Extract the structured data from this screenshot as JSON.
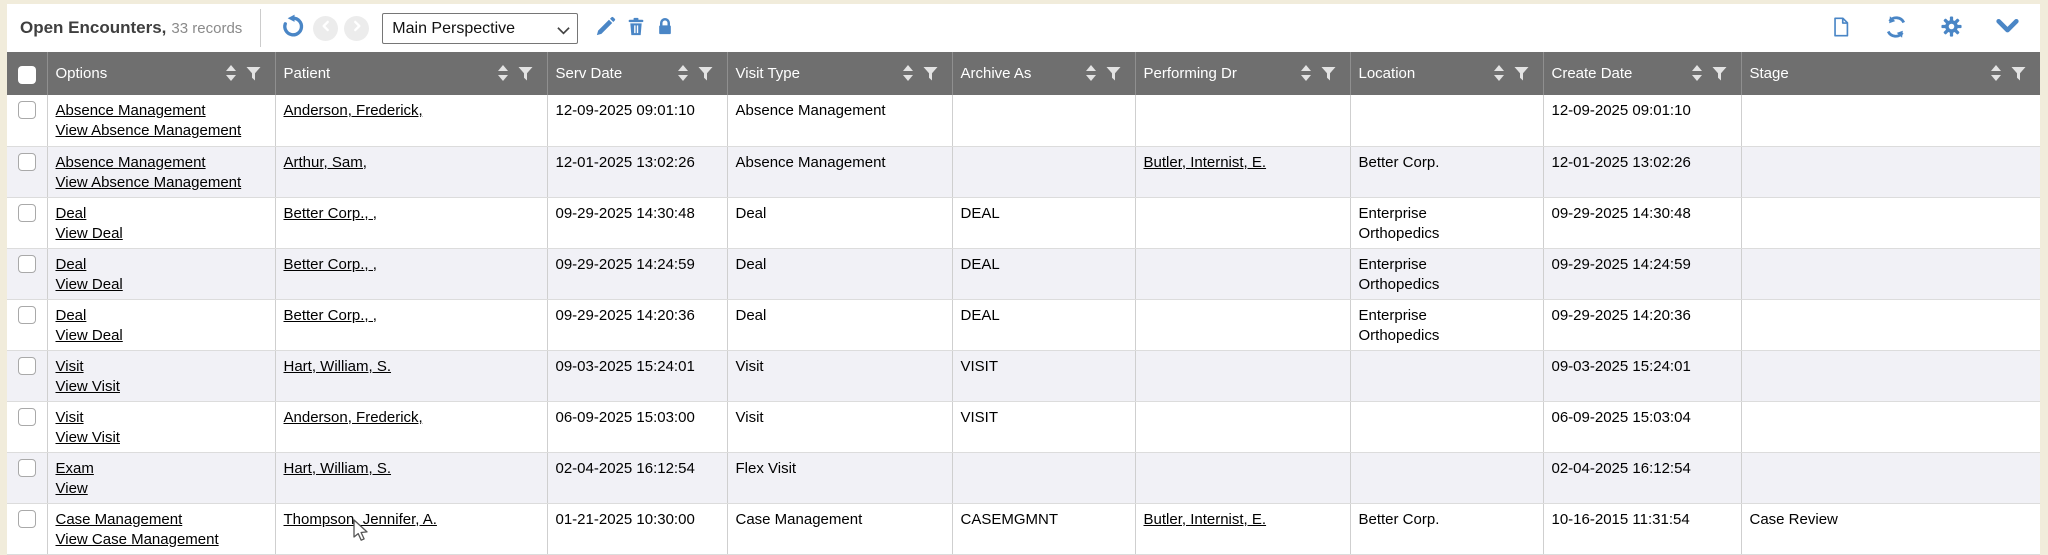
{
  "toolbar": {
    "title": "Open Encounters,",
    "records": "33 records",
    "perspective": {
      "value": "Main Perspective",
      "options": [
        "Main Perspective"
      ]
    },
    "left_icons": [
      "undo-icon",
      "chevron-left-icon",
      "chevron-right-icon",
      "pencil-icon",
      "trash-icon",
      "lock-icon"
    ],
    "right_icons": [
      "new-document-icon",
      "refresh-icon",
      "gear-icon",
      "chevron-down-icon"
    ],
    "accent_color": "#4a86c6"
  },
  "table": {
    "header_bg": "#6f6f6f",
    "alt_row_bg": "#f1f1f6",
    "columns": [
      {
        "key": "options",
        "label": "Options"
      },
      {
        "key": "patient",
        "label": "Patient"
      },
      {
        "key": "serv_date",
        "label": "Serv Date"
      },
      {
        "key": "visit_type",
        "label": "Visit Type"
      },
      {
        "key": "archive_as",
        "label": "Archive As"
      },
      {
        "key": "performing_dr",
        "label": "Performing Dr"
      },
      {
        "key": "location",
        "label": "Location"
      },
      {
        "key": "create_date",
        "label": "Create Date"
      },
      {
        "key": "stage",
        "label": "Stage"
      }
    ],
    "rows": [
      {
        "options": [
          "Absence Management",
          "View Absence Management"
        ],
        "patient": "Anderson, Frederick,",
        "serv_date": "12-09-2025 09:01:10",
        "visit_type": "Absence Management",
        "archive_as": "",
        "performing_dr": "",
        "location": "",
        "create_date": "12-09-2025 09:01:10",
        "stage": ""
      },
      {
        "options": [
          "Absence Management",
          "View Absence Management"
        ],
        "patient": "Arthur, Sam,",
        "serv_date": "12-01-2025 13:02:26",
        "visit_type": "Absence Management",
        "archive_as": "",
        "performing_dr": "Butler, Internist, E.",
        "location": "Better Corp.",
        "create_date": "12-01-2025 13:02:26",
        "stage": ""
      },
      {
        "options": [
          "Deal",
          "View Deal"
        ],
        "patient": "Better Corp., ,",
        "serv_date": "09-29-2025 14:30:48",
        "visit_type": "Deal",
        "archive_as": "DEAL",
        "performing_dr": "",
        "location": "Enterprise Orthopedics",
        "create_date": "09-29-2025 14:30:48",
        "stage": ""
      },
      {
        "options": [
          "Deal",
          "View Deal"
        ],
        "patient": "Better Corp., ,",
        "serv_date": "09-29-2025 14:24:59",
        "visit_type": "Deal",
        "archive_as": "DEAL",
        "performing_dr": "",
        "location": "Enterprise Orthopedics",
        "create_date": "09-29-2025 14:24:59",
        "stage": ""
      },
      {
        "options": [
          "Deal",
          "View Deal"
        ],
        "patient": "Better Corp., ,",
        "serv_date": "09-29-2025 14:20:36",
        "visit_type": "Deal",
        "archive_as": "DEAL",
        "performing_dr": "",
        "location": "Enterprise Orthopedics",
        "create_date": "09-29-2025 14:20:36",
        "stage": ""
      },
      {
        "options": [
          "Visit",
          "View Visit"
        ],
        "patient": "Hart, William, S.",
        "serv_date": "09-03-2025 15:24:01",
        "visit_type": "Visit",
        "archive_as": "VISIT",
        "performing_dr": "",
        "location": "",
        "create_date": "09-03-2025 15:24:01",
        "stage": ""
      },
      {
        "options": [
          "Visit",
          "View Visit"
        ],
        "patient": "Anderson, Frederick,",
        "serv_date": "06-09-2025 15:03:00",
        "visit_type": "Visit",
        "archive_as": "VISIT",
        "performing_dr": "",
        "location": "",
        "create_date": "06-09-2025 15:03:04",
        "stage": ""
      },
      {
        "options": [
          "Exam",
          "View"
        ],
        "patient": "Hart, William, S.",
        "serv_date": "02-04-2025 16:12:54",
        "visit_type": "Flex Visit",
        "archive_as": "",
        "performing_dr": "",
        "location": "",
        "create_date": "02-04-2025 16:12:54",
        "stage": ""
      },
      {
        "options": [
          "Case Management",
          "View Case Management"
        ],
        "patient": "Thompson, Jennifer, A.",
        "serv_date": "01-21-2025 10:30:00",
        "visit_type": "Case Management",
        "archive_as": "CASEMGMNT",
        "performing_dr": "Butler, Internist, E.",
        "location": "Better Corp.",
        "create_date": "10-16-2015 11:31:54",
        "stage": "Case Review"
      }
    ]
  }
}
